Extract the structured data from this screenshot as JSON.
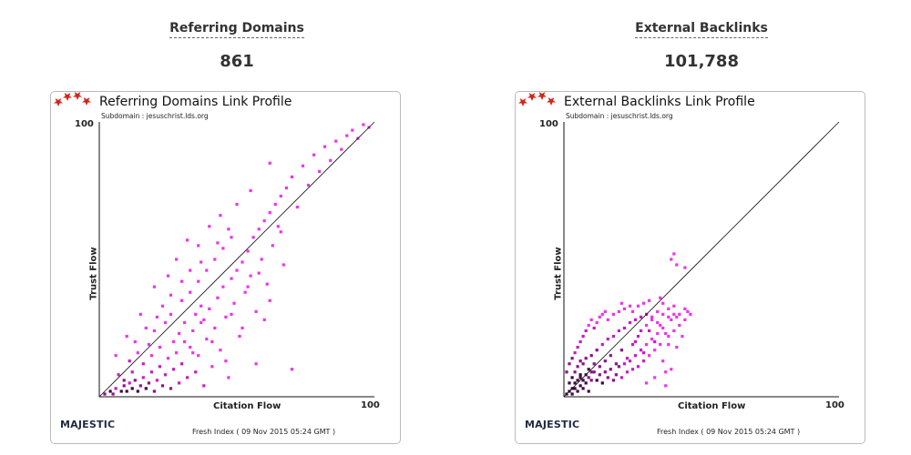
{
  "stats": {
    "left": {
      "title": "Referring Domains",
      "value": "861"
    },
    "right": {
      "title": "External Backlinks",
      "value": "101,788"
    }
  },
  "chart_data": [
    {
      "type": "heatmap",
      "title": "Referring Domains Link Profile",
      "subtitle": "Subdomain : jesuschrist.lds.org",
      "xlabel": "Citation Flow",
      "ylabel": "Trust Flow",
      "xlim": [
        0,
        100
      ],
      "ylim": [
        0,
        100
      ],
      "x_tick_max": "100",
      "y_tick_max": "100",
      "diagonal": true,
      "points": [
        [
          2,
          1,
          3
        ],
        [
          4,
          2,
          4
        ],
        [
          5,
          1,
          3
        ],
        [
          6,
          3,
          2
        ],
        [
          8,
          2,
          4
        ],
        [
          9,
          4,
          3
        ],
        [
          10,
          2,
          4
        ],
        [
          11,
          5,
          2
        ],
        [
          12,
          3,
          4
        ],
        [
          13,
          6,
          3
        ],
        [
          14,
          2,
          4
        ],
        [
          15,
          4,
          3
        ],
        [
          16,
          7,
          2
        ],
        [
          17,
          3,
          4
        ],
        [
          18,
          5,
          3
        ],
        [
          19,
          9,
          2
        ],
        [
          20,
          2,
          3
        ],
        [
          21,
          6,
          2
        ],
        [
          22,
          11,
          2
        ],
        [
          23,
          4,
          3
        ],
        [
          24,
          8,
          2
        ],
        [
          25,
          14,
          1
        ],
        [
          26,
          3,
          3
        ],
        [
          27,
          10,
          2
        ],
        [
          28,
          16,
          1
        ],
        [
          29,
          5,
          2
        ],
        [
          30,
          12,
          2
        ],
        [
          31,
          20,
          1
        ],
        [
          32,
          7,
          2
        ],
        [
          33,
          18,
          1
        ],
        [
          34,
          24,
          1
        ],
        [
          35,
          9,
          2
        ],
        [
          36,
          15,
          1
        ],
        [
          37,
          27,
          1
        ],
        [
          38,
          4,
          2
        ],
        [
          39,
          21,
          1
        ],
        [
          40,
          32,
          1
        ],
        [
          41,
          11,
          1
        ],
        [
          42,
          25,
          1
        ],
        [
          43,
          36,
          1
        ],
        [
          44,
          17,
          1
        ],
        [
          45,
          40,
          1
        ],
        [
          46,
          29,
          1
        ],
        [
          47,
          7,
          1
        ],
        [
          48,
          43,
          1
        ],
        [
          49,
          34,
          1
        ],
        [
          50,
          46,
          1
        ],
        [
          51,
          22,
          1
        ],
        [
          52,
          49,
          1
        ],
        [
          53,
          38,
          1
        ],
        [
          54,
          53,
          1
        ],
        [
          55,
          44,
          1
        ],
        [
          56,
          58,
          1
        ],
        [
          57,
          31,
          1
        ],
        [
          58,
          61,
          1
        ],
        [
          59,
          50,
          1
        ],
        [
          60,
          64,
          1
        ],
        [
          61,
          41,
          1
        ],
        [
          62,
          67,
          1
        ],
        [
          63,
          55,
          1
        ],
        [
          64,
          70,
          1
        ],
        [
          65,
          62,
          1
        ],
        [
          66,
          73,
          1
        ],
        [
          67,
          48,
          1
        ],
        [
          68,
          76,
          1
        ],
        [
          70,
          80,
          1
        ],
        [
          72,
          69,
          1
        ],
        [
          74,
          84,
          1
        ],
        [
          76,
          77,
          1
        ],
        [
          78,
          88,
          1
        ],
        [
          80,
          82,
          1
        ],
        [
          82,
          91,
          1
        ],
        [
          84,
          86,
          1
        ],
        [
          86,
          93,
          1
        ],
        [
          88,
          90,
          1
        ],
        [
          90,
          95,
          1
        ],
        [
          92,
          97,
          1
        ],
        [
          94,
          94,
          1
        ],
        [
          96,
          99,
          1
        ],
        [
          98,
          98,
          1
        ],
        [
          7,
          8,
          2
        ],
        [
          11,
          13,
          2
        ],
        [
          14,
          16,
          1
        ],
        [
          18,
          19,
          1
        ],
        [
          20,
          24,
          1
        ],
        [
          24,
          27,
          1
        ],
        [
          26,
          30,
          1
        ],
        [
          30,
          35,
          1
        ],
        [
          33,
          38,
          1
        ],
        [
          36,
          42,
          1
        ],
        [
          39,
          46,
          1
        ],
        [
          42,
          50,
          1
        ],
        [
          45,
          54,
          1
        ],
        [
          48,
          58,
          1
        ],
        [
          36,
          55,
          1
        ],
        [
          40,
          62,
          1
        ],
        [
          44,
          66,
          1
        ],
        [
          50,
          70,
          1
        ],
        [
          55,
          75,
          1
        ],
        [
          62,
          85,
          1
        ],
        [
          28,
          50,
          1
        ],
        [
          32,
          57,
          1
        ],
        [
          20,
          40,
          1
        ],
        [
          15,
          30,
          1
        ],
        [
          10,
          22,
          1
        ],
        [
          6,
          15,
          1
        ],
        [
          25,
          44,
          1
        ],
        [
          57,
          12,
          1
        ],
        [
          70,
          10,
          1
        ],
        [
          52,
          25,
          1
        ],
        [
          46,
          13,
          1
        ],
        [
          38,
          28,
          1
        ],
        [
          34,
          16,
          1
        ],
        [
          41,
          20,
          1
        ],
        [
          60,
          28,
          1
        ],
        [
          62,
          35,
          1
        ],
        [
          54,
          40,
          1
        ],
        [
          48,
          30,
          1
        ],
        [
          58,
          45,
          1
        ],
        [
          66,
          60,
          1
        ],
        [
          16,
          12,
          2
        ],
        [
          19,
          15,
          1
        ],
        [
          22,
          18,
          1
        ],
        [
          12,
          9,
          2
        ],
        [
          9,
          6,
          3
        ],
        [
          27,
          20,
          1
        ],
        [
          29,
          23,
          1
        ],
        [
          31,
          27,
          1
        ],
        [
          35,
          30,
          1
        ],
        [
          37,
          33,
          1
        ],
        [
          13,
          20,
          1
        ],
        [
          17,
          25,
          1
        ],
        [
          21,
          29,
          1
        ],
        [
          23,
          33,
          1
        ],
        [
          26,
          37,
          1
        ],
        [
          30,
          42,
          1
        ],
        [
          33,
          46,
          1
        ],
        [
          37,
          49,
          1
        ],
        [
          43,
          56,
          1
        ],
        [
          47,
          61,
          1
        ]
      ]
    },
    {
      "type": "heatmap",
      "title": "External Backlinks Link Profile",
      "subtitle": "Subdomain : jesuschrist.lds.org",
      "xlabel": "Citation Flow",
      "ylabel": "Trust Flow",
      "xlim": [
        0,
        100
      ],
      "ylim": [
        0,
        100
      ],
      "x_tick_max": "100",
      "y_tick_max": "100",
      "diagonal": true,
      "points": [
        [
          1,
          1,
          4
        ],
        [
          2,
          2,
          4
        ],
        [
          3,
          1,
          4
        ],
        [
          4,
          3,
          4
        ],
        [
          5,
          2,
          4
        ],
        [
          6,
          4,
          4
        ],
        [
          7,
          3,
          4
        ],
        [
          8,
          5,
          4
        ],
        [
          9,
          2,
          4
        ],
        [
          10,
          6,
          3
        ],
        [
          2,
          5,
          4
        ],
        [
          3,
          7,
          4
        ],
        [
          4,
          9,
          3
        ],
        [
          5,
          11,
          3
        ],
        [
          6,
          8,
          4
        ],
        [
          7,
          12,
          3
        ],
        [
          8,
          14,
          3
        ],
        [
          9,
          10,
          4
        ],
        [
          10,
          15,
          3
        ],
        [
          11,
          9,
          3
        ],
        [
          12,
          17,
          3
        ],
        [
          13,
          11,
          3
        ],
        [
          14,
          19,
          2
        ],
        [
          15,
          13,
          3
        ],
        [
          16,
          21,
          2
        ],
        [
          17,
          15,
          3
        ],
        [
          18,
          22,
          2
        ],
        [
          19,
          12,
          3
        ],
        [
          20,
          24,
          2
        ],
        [
          21,
          17,
          3
        ],
        [
          22,
          25,
          2
        ],
        [
          23,
          14,
          2
        ],
        [
          24,
          27,
          2
        ],
        [
          25,
          19,
          2
        ],
        [
          26,
          28,
          2
        ],
        [
          27,
          22,
          2
        ],
        [
          28,
          29,
          2
        ],
        [
          29,
          16,
          2
        ],
        [
          30,
          30,
          2
        ],
        [
          31,
          24,
          2
        ],
        [
          32,
          29,
          1
        ],
        [
          33,
          20,
          2
        ],
        [
          34,
          31,
          1
        ],
        [
          35,
          26,
          1
        ],
        [
          36,
          30,
          1
        ],
        [
          37,
          23,
          1
        ],
        [
          38,
          32,
          1
        ],
        [
          39,
          28,
          1
        ],
        [
          40,
          30,
          1
        ],
        [
          41,
          18,
          1
        ],
        [
          1,
          9,
          3
        ],
        [
          2,
          12,
          3
        ],
        [
          3,
          14,
          3
        ],
        [
          4,
          16,
          2
        ],
        [
          5,
          18,
          2
        ],
        [
          6,
          20,
          2
        ],
        [
          7,
          22,
          2
        ],
        [
          8,
          24,
          2
        ],
        [
          9,
          26,
          1
        ],
        [
          10,
          28,
          1
        ],
        [
          11,
          25,
          2
        ],
        [
          12,
          27,
          1
        ],
        [
          13,
          29,
          1
        ],
        [
          14,
          30,
          1
        ],
        [
          15,
          31,
          1
        ],
        [
          16,
          28,
          1
        ],
        [
          18,
          30,
          1
        ],
        [
          20,
          31,
          1
        ],
        [
          22,
          32,
          1
        ],
        [
          24,
          33,
          1
        ],
        [
          12,
          6,
          4
        ],
        [
          13,
          8,
          3
        ],
        [
          14,
          5,
          4
        ],
        [
          15,
          9,
          3
        ],
        [
          16,
          7,
          3
        ],
        [
          17,
          10,
          3
        ],
        [
          18,
          6,
          3
        ],
        [
          19,
          8,
          3
        ],
        [
          20,
          11,
          3
        ],
        [
          21,
          7,
          2
        ],
        [
          22,
          12,
          2
        ],
        [
          23,
          9,
          2
        ],
        [
          24,
          13,
          2
        ],
        [
          25,
          10,
          2
        ],
        [
          26,
          15,
          2
        ],
        [
          27,
          11,
          2
        ],
        [
          28,
          17,
          2
        ],
        [
          29,
          13,
          2
        ],
        [
          30,
          19,
          1
        ],
        [
          31,
          15,
          1
        ],
        [
          32,
          21,
          1
        ],
        [
          33,
          17,
          1
        ],
        [
          34,
          23,
          1
        ],
        [
          35,
          19,
          1
        ],
        [
          36,
          25,
          1
        ],
        [
          38,
          22,
          1
        ],
        [
          40,
          24,
          1
        ],
        [
          42,
          26,
          1
        ],
        [
          44,
          28,
          1
        ],
        [
          46,
          30,
          1
        ],
        [
          3,
          3,
          4
        ],
        [
          4,
          5,
          4
        ],
        [
          5,
          6,
          4
        ],
        [
          6,
          7,
          4
        ],
        [
          7,
          6,
          4
        ],
        [
          8,
          8,
          4
        ],
        [
          9,
          7,
          3
        ],
        [
          10,
          9,
          3
        ],
        [
          11,
          12,
          3
        ],
        [
          6,
          13,
          3
        ],
        [
          40,
          33,
          1
        ],
        [
          42,
          30,
          1
        ],
        [
          44,
          32,
          1
        ],
        [
          36,
          34,
          1
        ],
        [
          34,
          27,
          1
        ],
        [
          26,
          20,
          2
        ],
        [
          28,
          24,
          2
        ],
        [
          30,
          26,
          1
        ],
        [
          32,
          28,
          1
        ],
        [
          38,
          29,
          1
        ],
        [
          37,
          4,
          1
        ],
        [
          37,
          9,
          1
        ],
        [
          39,
          10,
          1
        ],
        [
          36,
          13,
          1
        ],
        [
          30,
          5,
          1
        ],
        [
          33,
          7,
          1
        ],
        [
          41,
          29,
          1
        ],
        [
          43,
          22,
          1
        ],
        [
          45,
          31,
          1
        ],
        [
          38,
          19,
          1
        ],
        [
          40,
          52,
          1
        ],
        [
          41,
          48,
          1
        ],
        [
          39,
          50,
          1
        ],
        [
          44,
          47,
          1
        ],
        [
          31,
          35,
          1
        ],
        [
          27,
          33,
          1
        ],
        [
          35,
          36,
          1
        ],
        [
          29,
          34,
          1
        ],
        [
          25,
          31,
          1
        ],
        [
          21,
          34,
          1
        ]
      ]
    }
  ],
  "footer": {
    "logo_text": "MAJESTIC",
    "fresh_index": "Fresh Index ( 09 Nov 2015 05:24 GMT )"
  },
  "colors": {
    "level1": "#ee33ee",
    "level2": "#c819c8",
    "level3": "#8c0f8c",
    "level4": "#3d0540",
    "axis": "#111111",
    "logo_star": "#d0261b"
  }
}
